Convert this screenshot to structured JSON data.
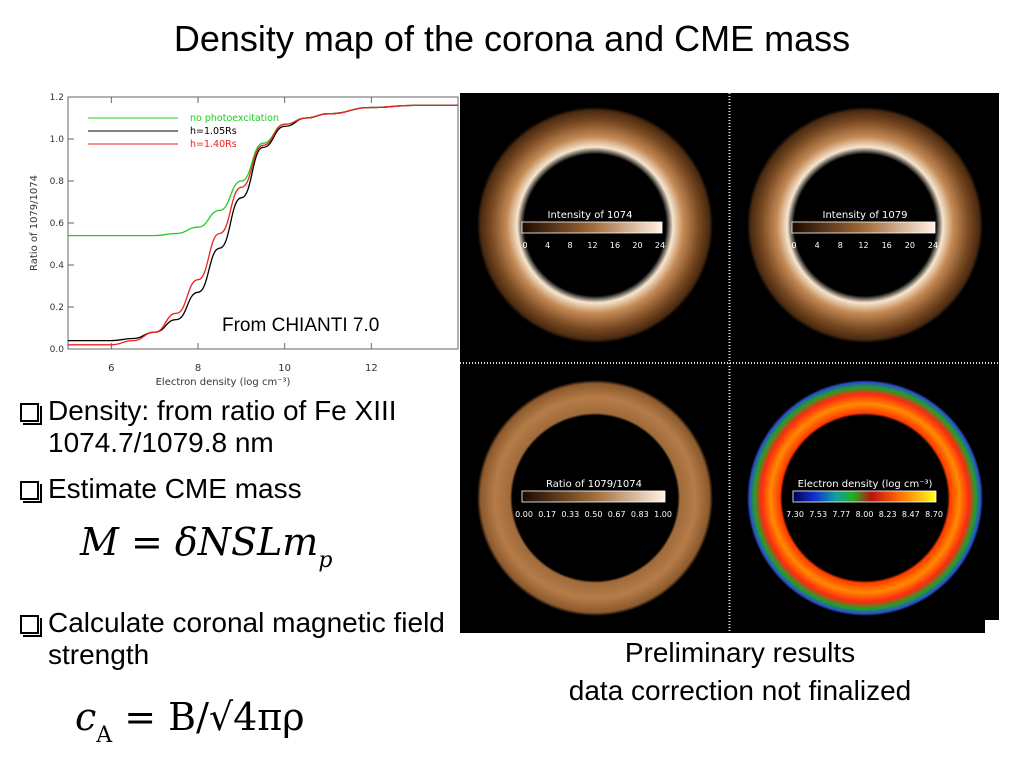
{
  "slide": {
    "title": "Density map of the corona and CME mass",
    "chart_label": "From CHIANTI 7.0",
    "bullets": [
      "Density: from ratio of Fe XIII 1074.7/1079.8 nm",
      "Estimate CME mass",
      "Calculate coronal magnetic field strength"
    ],
    "formula_mass": "M = δNSLm",
    "formula_mass_sub": "p",
    "formula_alfven_left": "c",
    "formula_alfven_sub": "A",
    "formula_alfven_right": " = B/√4πρ",
    "caption_line1": "Preliminary results",
    "caption_line2": "data correction not finalized"
  },
  "panels": [
    {
      "colorbar_title": "Intensity of 1074",
      "ticks": [
        "0",
        "4",
        "8",
        "12",
        "16",
        "20",
        "24"
      ]
    },
    {
      "colorbar_title": "Intensity of 1079",
      "ticks": [
        "0",
        "4",
        "8",
        "12",
        "16",
        "20",
        "24"
      ]
    },
    {
      "colorbar_title": "Ratio of 1079/1074",
      "ticks": [
        "0.00",
        "0.17",
        "0.33",
        "0.50",
        "0.67",
        "0.83",
        "1.00"
      ]
    },
    {
      "colorbar_title": "Electron density (log cm⁻³)",
      "ticks": [
        "7.30",
        "7.53",
        "7.77",
        "8.00",
        "8.23",
        "8.47",
        "8.70"
      ]
    }
  ],
  "chart_data": {
    "type": "line",
    "title": "",
    "xlabel": "Electron density (log cm⁻³)",
    "ylabel": "Ratio of 1079/1074",
    "xlim": [
      5,
      14
    ],
    "ylim": [
      0,
      1.2
    ],
    "xticks": [
      6,
      8,
      10,
      12
    ],
    "yticks": [
      0.0,
      0.2,
      0.4,
      0.6,
      0.8,
      1.0,
      1.2
    ],
    "legend_position": "top-left",
    "series": [
      {
        "name": "no photoexcitation",
        "color": "#22cc22",
        "x": [
          5,
          6,
          7,
          7.5,
          8,
          8.5,
          9,
          9.5,
          10,
          10.5,
          11,
          12,
          13,
          14
        ],
        "y": [
          0.54,
          0.54,
          0.54,
          0.55,
          0.58,
          0.66,
          0.8,
          0.98,
          1.07,
          1.1,
          1.12,
          1.15,
          1.16,
          1.16
        ]
      },
      {
        "name": "h=1.05Rs",
        "color": "#000000",
        "x": [
          5,
          6,
          6.5,
          7,
          7.5,
          8,
          8.5,
          9,
          9.5,
          10,
          10.5,
          11,
          12,
          13,
          14
        ],
        "y": [
          0.04,
          0.04,
          0.05,
          0.08,
          0.14,
          0.27,
          0.48,
          0.72,
          0.96,
          1.06,
          1.1,
          1.12,
          1.15,
          1.16,
          1.16
        ]
      },
      {
        "name": "h=1.40Rs",
        "color": "#ee2222",
        "x": [
          5,
          6,
          6.5,
          7,
          7.5,
          8,
          8.5,
          9,
          9.5,
          10,
          10.5,
          11,
          12,
          13,
          14
        ],
        "y": [
          0.02,
          0.02,
          0.04,
          0.08,
          0.17,
          0.33,
          0.55,
          0.77,
          0.97,
          1.07,
          1.1,
          1.12,
          1.15,
          1.16,
          1.16
        ]
      }
    ]
  },
  "colors": {
    "bronze_low": "#3a1a05",
    "bronze_high": "#f5ddc0"
  }
}
